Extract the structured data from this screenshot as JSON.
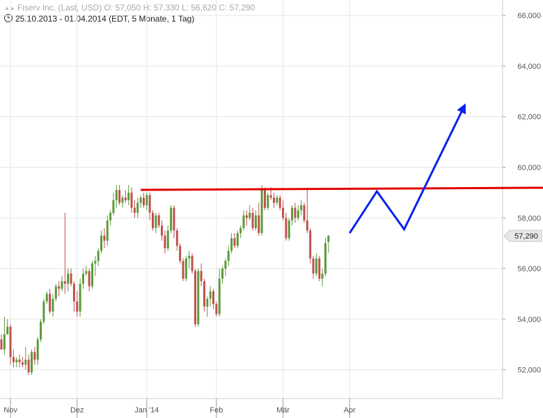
{
  "header": {
    "line1": "Fiserv Inc. (Last, USD)  O: 57,050  H: 57,330  L: 56,620  C: 57,290",
    "line2": "25.10.2013 - 01.04.2014 (EDT, 5 Monate, 1 Tag)"
  },
  "chart_data": {
    "type": "candlestick",
    "currency": "USD",
    "y_ticks": [
      "52,000",
      "54,000",
      "56,000",
      "58,000",
      "60,000",
      "62,000",
      "64,000",
      "66,000"
    ],
    "ylim": [
      51000,
      66800
    ],
    "x_tick_labels": [
      "Nov",
      "Dez",
      "Jan '14",
      "Feb",
      "Mär",
      "Apr"
    ],
    "x_tick_positions": [
      3,
      25,
      48,
      71,
      93,
      115
    ],
    "last_label": "57,290",
    "last_value": 57290,
    "up_color": "#5a9a3a",
    "down_color": "#c0504d",
    "resistance_line": {
      "value": 59150,
      "color": "#e00000",
      "from_index": 46
    },
    "projection": {
      "color": "#0b22ee",
      "points": [
        [
          57400,
          115
        ],
        [
          59050,
          124
        ],
        [
          57550,
          133
        ],
        [
          62450,
          153
        ]
      ]
    },
    "candles": [
      [
        53200,
        53400,
        52800,
        52800
      ],
      [
        52800,
        54100,
        52600,
        53400
      ],
      [
        53400,
        54000,
        53500,
        53700
      ],
      [
        53700,
        53800,
        52200,
        52500
      ],
      [
        52500,
        52800,
        52100,
        52300
      ],
      [
        52300,
        52500,
        52100,
        52400
      ],
      [
        52400,
        52600,
        52100,
        52300
      ],
      [
        52300,
        52500,
        52100,
        52200
      ],
      [
        52200,
        52900,
        52000,
        52400
      ],
      [
        52400,
        52600,
        51800,
        51900
      ],
      [
        51900,
        52800,
        51800,
        52700
      ],
      [
        52700,
        52900,
        52200,
        52400
      ],
      [
        52400,
        53300,
        52200,
        53200
      ],
      [
        53200,
        54000,
        53100,
        53900
      ],
      [
        53900,
        54800,
        53800,
        54700
      ],
      [
        54700,
        55100,
        54600,
        55000
      ],
      [
        55000,
        55200,
        54200,
        54300
      ],
      [
        54300,
        55000,
        54100,
        54800
      ],
      [
        54800,
        55400,
        54700,
        55300
      ],
      [
        55300,
        55500,
        54900,
        55200
      ],
      [
        55200,
        55700,
        55100,
        55500
      ],
      [
        55500,
        58200,
        55000,
        55400
      ],
      [
        55400,
        56000,
        55100,
        55800
      ],
      [
        55800,
        56000,
        55300,
        55400
      ],
      [
        55400,
        55500,
        54300,
        54700
      ],
      [
        54700,
        55100,
        54100,
        54300
      ],
      [
        54300,
        55600,
        54100,
        55400
      ],
      [
        55400,
        56000,
        55200,
        55800
      ],
      [
        55800,
        56100,
        55700,
        55900
      ],
      [
        55900,
        56000,
        55100,
        55300
      ],
      [
        55300,
        56300,
        55200,
        56200
      ],
      [
        56200,
        56500,
        55700,
        56300
      ],
      [
        56300,
        56800,
        56100,
        56700
      ],
      [
        56700,
        57500,
        56600,
        57300
      ],
      [
        57300,
        57600,
        56800,
        57100
      ],
      [
        57100,
        58100,
        56900,
        57900
      ],
      [
        57900,
        58300,
        57700,
        58200
      ],
      [
        58200,
        59000,
        58100,
        58700
      ],
      [
        58700,
        59300,
        58400,
        59100
      ],
      [
        59100,
        59300,
        58500,
        58600
      ],
      [
        58600,
        58900,
        58400,
        58800
      ],
      [
        58800,
        59100,
        58600,
        58700
      ],
      [
        58700,
        59300,
        58500,
        59000
      ],
      [
        59000,
        59200,
        58200,
        58400
      ],
      [
        58400,
        58700,
        58000,
        58200
      ],
      [
        58200,
        58800,
        58000,
        58600
      ],
      [
        58600,
        58900,
        58400,
        58800
      ],
      [
        58800,
        59000,
        58400,
        58500
      ],
      [
        58500,
        59000,
        58300,
        58900
      ],
      [
        58900,
        59000,
        57900,
        58200
      ],
      [
        58200,
        58300,
        57500,
        57600
      ],
      [
        57600,
        58200,
        57400,
        58100
      ],
      [
        58100,
        58200,
        57600,
        57700
      ],
      [
        57700,
        57900,
        57100,
        57300
      ],
      [
        57300,
        57500,
        56600,
        56800
      ],
      [
        56800,
        57700,
        56700,
        57500
      ],
      [
        57500,
        58500,
        57400,
        58400
      ],
      [
        58400,
        58500,
        57200,
        57500
      ],
      [
        57500,
        57600,
        56700,
        56900
      ],
      [
        56900,
        57000,
        56200,
        56300
      ],
      [
        56300,
        56400,
        55500,
        55600
      ],
      [
        55600,
        56500,
        55500,
        56400
      ],
      [
        56400,
        56700,
        56000,
        56500
      ],
      [
        56500,
        56600,
        55800,
        55900
      ],
      [
        55900,
        56000,
        53700,
        53800
      ],
      [
        53800,
        56000,
        53700,
        55900
      ],
      [
        55900,
        56200,
        55300,
        55500
      ],
      [
        55500,
        55600,
        54300,
        54500
      ],
      [
        54500,
        54900,
        54100,
        54800
      ],
      [
        54800,
        55300,
        54500,
        55100
      ],
      [
        55100,
        55200,
        54400,
        54600
      ],
      [
        54600,
        54700,
        54100,
        54200
      ],
      [
        54200,
        56000,
        54100,
        55600
      ],
      [
        55600,
        56100,
        55400,
        56000
      ],
      [
        56000,
        56400,
        55700,
        56300
      ],
      [
        56300,
        56900,
        56100,
        56700
      ],
      [
        56700,
        57400,
        56600,
        57200
      ],
      [
        57200,
        57400,
        56800,
        56900
      ],
      [
        56900,
        57500,
        56800,
        57400
      ],
      [
        57400,
        57700,
        57200,
        57600
      ],
      [
        57600,
        58300,
        57500,
        58100
      ],
      [
        58100,
        58300,
        57700,
        58000
      ],
      [
        58000,
        58500,
        57900,
        58200
      ],
      [
        58200,
        58400,
        57500,
        57600
      ],
      [
        57600,
        58300,
        57500,
        58100
      ],
      [
        58100,
        58600,
        57300,
        57400
      ],
      [
        57400,
        59300,
        57300,
        59100
      ],
      [
        59100,
        59200,
        58300,
        58400
      ],
      [
        58400,
        59000,
        58300,
        58900
      ],
      [
        58900,
        59200,
        58700,
        58800
      ],
      [
        58800,
        59000,
        58400,
        58600
      ],
      [
        58600,
        58900,
        58500,
        58800
      ],
      [
        58800,
        58900,
        58300,
        58400
      ],
      [
        58400,
        58700,
        57900,
        58000
      ],
      [
        58000,
        58200,
        57100,
        57200
      ],
      [
        57200,
        58000,
        57100,
        57900
      ],
      [
        57900,
        58500,
        57700,
        58400
      ],
      [
        58400,
        58600,
        57800,
        58000
      ],
      [
        58000,
        58500,
        57900,
        58300
      ],
      [
        58300,
        58700,
        58100,
        58500
      ],
      [
        58500,
        58600,
        57800,
        57900
      ],
      [
        57900,
        59200,
        57400,
        57500
      ],
      [
        57500,
        57600,
        56200,
        56400
      ],
      [
        56400,
        56500,
        55600,
        55800
      ],
      [
        55800,
        56600,
        55700,
        56400
      ],
      [
        56400,
        56500,
        55500,
        55600
      ],
      [
        55600,
        56000,
        55300,
        55800
      ],
      [
        55800,
        57200,
        55700,
        57000
      ],
      [
        57050,
        57330,
        56620,
        57290
      ]
    ]
  }
}
